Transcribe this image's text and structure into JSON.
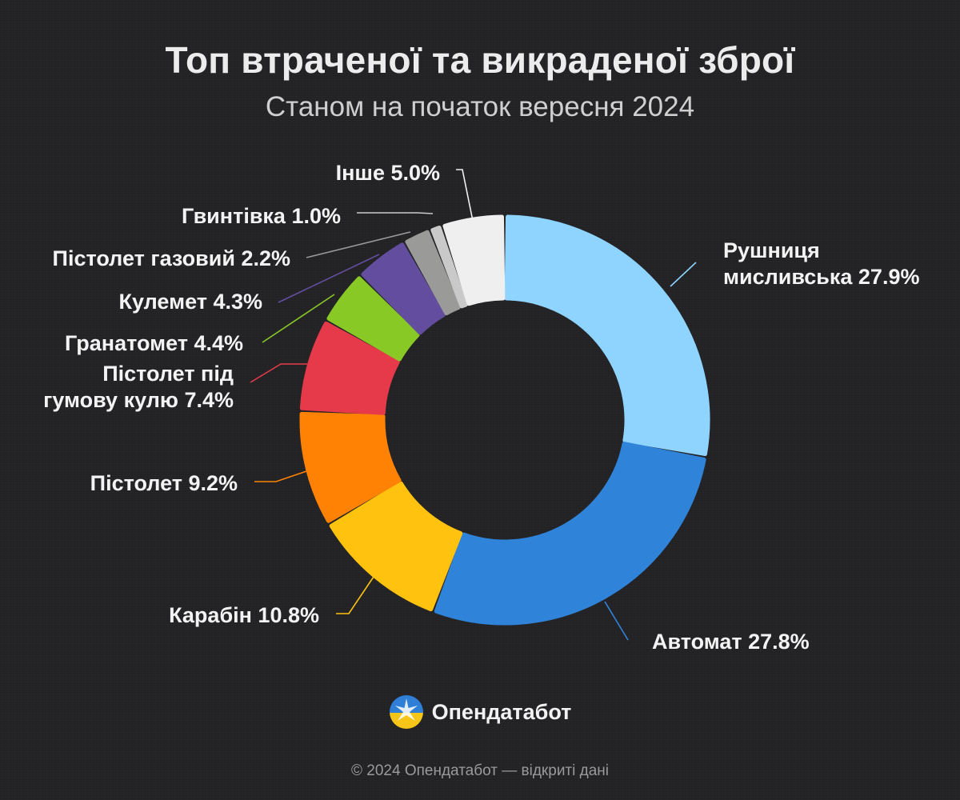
{
  "header": {
    "title": "Топ втраченої та викраденої зброї",
    "subtitle": "Станом на початок вересня 2024"
  },
  "chart_data": {
    "type": "pie",
    "donut": true,
    "slices": [
      {
        "label": [
          "Рушниця",
          "мисливська 27.9%"
        ],
        "value": 27.9,
        "color": "#8ED4FF",
        "label_side": "right"
      },
      {
        "label": [
          "Автомат 27.8%"
        ],
        "value": 27.8,
        "color": "#2F84DA",
        "label_side": "right"
      },
      {
        "label": [
          "Карабін 10.8%"
        ],
        "value": 10.8,
        "color": "#FFC20E",
        "label_side": "left"
      },
      {
        "label": [
          "Пістолет 9.2%"
        ],
        "value": 9.2,
        "color": "#FF8205",
        "label_side": "left"
      },
      {
        "label": [
          "Пістолет під",
          "гумову кулю 7.4%"
        ],
        "value": 7.4,
        "color": "#E63A4A",
        "label_side": "left"
      },
      {
        "label": [
          "Гранатомет 4.4%"
        ],
        "value": 4.4,
        "color": "#89C925",
        "label_side": "left"
      },
      {
        "label": [
          "Кулемет 4.3%"
        ],
        "value": 4.3,
        "color": "#624D9E",
        "label_side": "left"
      },
      {
        "label": [
          "Пістолет газовий 2.2%"
        ],
        "value": 2.2,
        "color": "#9A9A98",
        "label_side": "left"
      },
      {
        "label": [
          "Гвинтівка 1.0%"
        ],
        "value": 1.0,
        "color": "#C9C9C9",
        "label_side": "left"
      },
      {
        "label": [
          "Інше 5.0%"
        ],
        "value": 5.0,
        "color": "#EFEFEF",
        "label_side": "left"
      }
    ]
  },
  "brand": {
    "name": "Опендатабот",
    "logo_icon": "opendatabot-logo-icon"
  },
  "footer": {
    "text": "© 2024 Опендатабот — відкриті дані"
  }
}
